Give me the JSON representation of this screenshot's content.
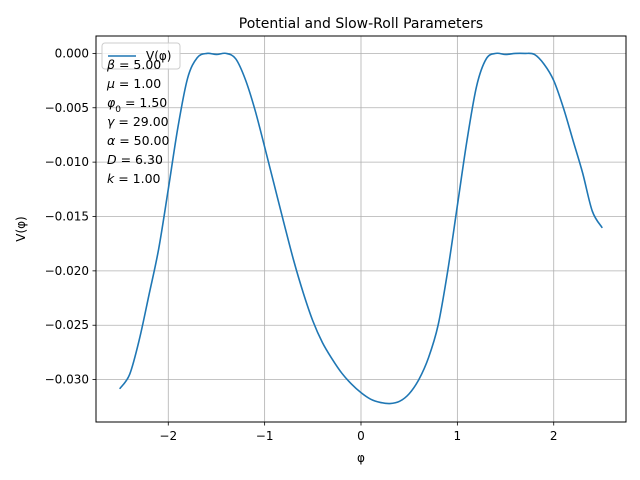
{
  "chart_data": {
    "type": "line",
    "title": "Potential and Slow-Roll Parameters",
    "xlabel": "φ",
    "ylabel": "V(φ)",
    "xlim": [
      -2.75,
      2.75
    ],
    "ylim": [
      -0.0339,
      0.0016
    ],
    "xticks": [
      -2,
      -1,
      0,
      1,
      2
    ],
    "xtick_labels": [
      "−2",
      "−1",
      "0",
      "1",
      "2"
    ],
    "yticks": [
      0.0,
      -0.005,
      -0.01,
      -0.015,
      -0.02,
      -0.025,
      -0.03
    ],
    "ytick_labels": [
      "0.000",
      "−0.005",
      "−0.010",
      "−0.015",
      "−0.020",
      "−0.025",
      "−0.030"
    ],
    "grid": true,
    "legend_position": "top-left",
    "series": [
      {
        "name": "V(φ)",
        "color": "#1f77b4",
        "x": [
          -2.5,
          -2.4,
          -2.3,
          -2.2,
          -2.1,
          -2.0,
          -1.9,
          -1.8,
          -1.7,
          -1.6,
          -1.5,
          -1.4,
          -1.3,
          -1.2,
          -1.1,
          -1.0,
          -0.9,
          -0.8,
          -0.7,
          -0.6,
          -0.5,
          -0.4,
          -0.3,
          -0.2,
          -0.1,
          0.0,
          0.1,
          0.2,
          0.3,
          0.4,
          0.5,
          0.6,
          0.7,
          0.8,
          0.9,
          1.0,
          1.1,
          1.2,
          1.3,
          1.4,
          1.5,
          1.6,
          1.7,
          1.8,
          1.9,
          2.0,
          2.1,
          2.2,
          2.3,
          2.4,
          2.5
        ],
        "y": [
          -0.0308,
          -0.0295,
          -0.0263,
          -0.0222,
          -0.018,
          -0.0125,
          -0.0068,
          -0.0023,
          -0.0004,
          0.0,
          -0.0001,
          0.0,
          -0.0005,
          -0.0024,
          -0.0052,
          -0.0086,
          -0.0121,
          -0.0156,
          -0.019,
          -0.022,
          -0.0246,
          -0.0266,
          -0.0281,
          -0.0294,
          -0.0304,
          -0.0312,
          -0.0318,
          -0.0321,
          -0.0322,
          -0.032,
          -0.0313,
          -0.03,
          -0.028,
          -0.025,
          -0.02,
          -0.014,
          -0.008,
          -0.003,
          -0.0005,
          0.0,
          -0.0001,
          0.0,
          0.0,
          -0.0001,
          -0.001,
          -0.0025,
          -0.005,
          -0.008,
          -0.011,
          -0.0145,
          -0.016
        ]
      }
    ]
  },
  "parameters": [
    {
      "symbol": "β",
      "sub": "",
      "value": "= 5.00"
    },
    {
      "symbol": "μ",
      "sub": "",
      "value": "= 1.00"
    },
    {
      "symbol": "φ",
      "sub": "0",
      "value": "= 1.50"
    },
    {
      "symbol": "γ",
      "sub": "",
      "value": "= 29.00"
    },
    {
      "symbol": "α",
      "sub": "",
      "value": "= 50.00"
    },
    {
      "symbol": "D",
      "sub": "",
      "value": "= 6.30"
    },
    {
      "symbol": "k",
      "sub": "",
      "value": "= 1.00"
    }
  ]
}
